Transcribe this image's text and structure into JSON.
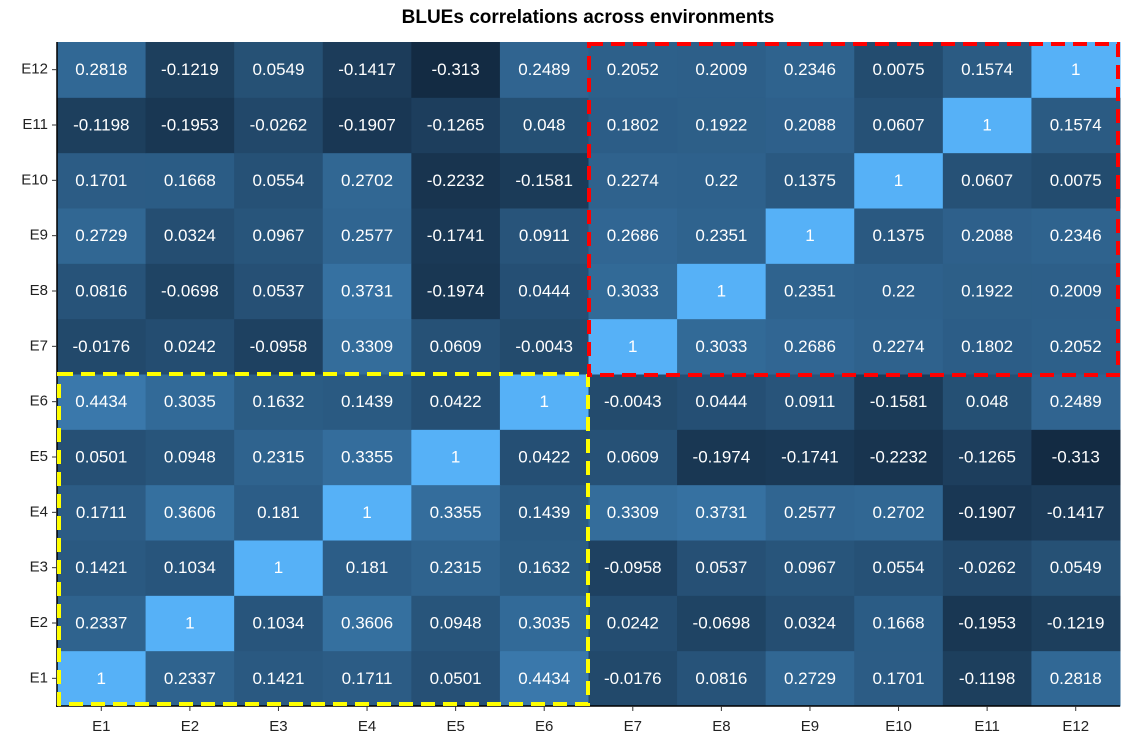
{
  "chart_data": {
    "type": "heatmap",
    "title": "BLUEs correlations across environments",
    "x_categories": [
      "E1",
      "E2",
      "E3",
      "E4",
      "E5",
      "E6",
      "E7",
      "E8",
      "E9",
      "E10",
      "E11",
      "E12"
    ],
    "y_categories": [
      "E1",
      "E2",
      "E3",
      "E4",
      "E5",
      "E6",
      "E7",
      "E8",
      "E9",
      "E10",
      "E11",
      "E12"
    ],
    "low_color": "#132b43",
    "high_color": "#56b1f7",
    "label_color": "#ffffff",
    "values": [
      [
        1,
        0.2337,
        0.1421,
        0.1711,
        0.0501,
        0.4434,
        -0.0176,
        0.0816,
        0.2729,
        0.1701,
        -0.1198,
        0.2818
      ],
      [
        0.2337,
        1,
        0.1034,
        0.3606,
        0.0948,
        0.3035,
        0.0242,
        -0.0698,
        0.0324,
        0.1668,
        -0.1953,
        -0.1219
      ],
      [
        0.1421,
        0.1034,
        1,
        0.181,
        0.2315,
        0.1632,
        -0.0958,
        0.0537,
        0.0967,
        0.0554,
        -0.0262,
        0.0549
      ],
      [
        0.1711,
        0.3606,
        0.181,
        1,
        0.3355,
        0.1439,
        0.3309,
        0.3731,
        0.2577,
        0.2702,
        -0.1907,
        -0.1417
      ],
      [
        0.0501,
        0.0948,
        0.2315,
        0.3355,
        1,
        0.0422,
        0.0609,
        -0.1974,
        -0.1741,
        -0.2232,
        -0.1265,
        -0.313
      ],
      [
        0.4434,
        0.3035,
        0.1632,
        0.1439,
        0.0422,
        1,
        -0.0043,
        0.0444,
        0.0911,
        -0.1581,
        0.048,
        0.2489
      ],
      [
        -0.0176,
        0.0242,
        -0.0958,
        0.3309,
        0.0609,
        -0.0043,
        1,
        0.3033,
        0.2686,
        0.2274,
        0.1802,
        0.2052
      ],
      [
        0.0816,
        -0.0698,
        0.0537,
        0.3731,
        -0.1974,
        0.0444,
        0.3033,
        1,
        0.2351,
        0.22,
        0.1922,
        0.2009
      ],
      [
        0.2729,
        0.0324,
        0.0967,
        0.2577,
        -0.1741,
        0.0911,
        0.2686,
        0.2351,
        1,
        0.1375,
        0.2088,
        0.2346
      ],
      [
        0.1701,
        0.1668,
        0.0554,
        0.2702,
        -0.2232,
        -0.1581,
        0.2274,
        0.22,
        0.1375,
        1,
        0.0607,
        0.0075
      ],
      [
        -0.1198,
        -0.1953,
        -0.0262,
        -0.1907,
        -0.1265,
        0.048,
        0.1802,
        0.1922,
        0.2088,
        0.0607,
        1,
        0.1574
      ],
      [
        0.2818,
        -0.1219,
        0.0549,
        -0.1417,
        -0.313,
        0.2489,
        0.2052,
        0.2009,
        0.2346,
        0.0075,
        0.1574,
        1
      ]
    ]
  }
}
